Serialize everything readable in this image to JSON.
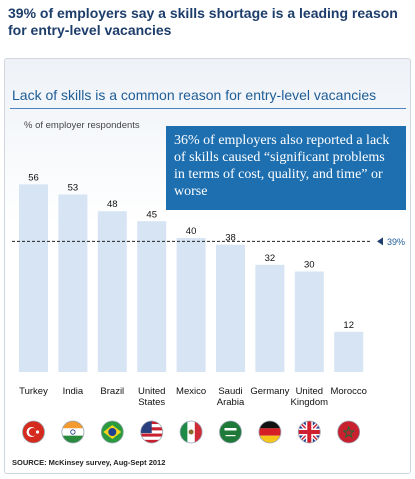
{
  "header": {
    "title": "39% of employers say a skills shortage is a leading reason for entry-level vacancies"
  },
  "callout": {
    "text": "36% of employers  also reported a lack of skills caused “significant problems in terms of cost, quality, and time” or worse"
  },
  "footer": {
    "source": "SOURCE: McKinsey survey, Aug-Sept 2012"
  },
  "colors": {
    "bar": "#d6e4f4",
    "title": "#1d3d6b",
    "callout_bg": "#1e6fb0",
    "reference_marker": "#1e3f6e"
  },
  "chart_data": {
    "type": "bar",
    "title": "Lack of skills is a common reason for entry-level vacancies",
    "ylabel": "% of employer respondents",
    "xlabel": "",
    "categories": [
      "Turkey",
      "India",
      "Brazil",
      "United States",
      "Mexico",
      "Saudi Arabia",
      "Germany",
      "United Kingdom",
      "Morocco"
    ],
    "category_lines": [
      [
        "Turkey"
      ],
      [
        "India"
      ],
      [
        "Brazil"
      ],
      [
        "United",
        "States"
      ],
      [
        "Mexico"
      ],
      [
        "Saudi",
        "Arabia"
      ],
      [
        "Germany"
      ],
      [
        "United",
        "Kingdom"
      ],
      [
        "Morocco"
      ]
    ],
    "values": [
      56,
      53,
      48,
      45,
      40,
      38,
      32,
      30,
      12
    ],
    "reference_line": {
      "value": 39,
      "label": "39%"
    },
    "ylim": [
      0,
      60
    ],
    "grid": false,
    "flag_icons": [
      "turkey-flag-icon",
      "india-flag-icon",
      "brazil-flag-icon",
      "united-states-flag-icon",
      "mexico-flag-icon",
      "saudi-arabia-flag-icon",
      "germany-flag-icon",
      "united-kingdom-flag-icon",
      "morocco-flag-icon"
    ]
  }
}
